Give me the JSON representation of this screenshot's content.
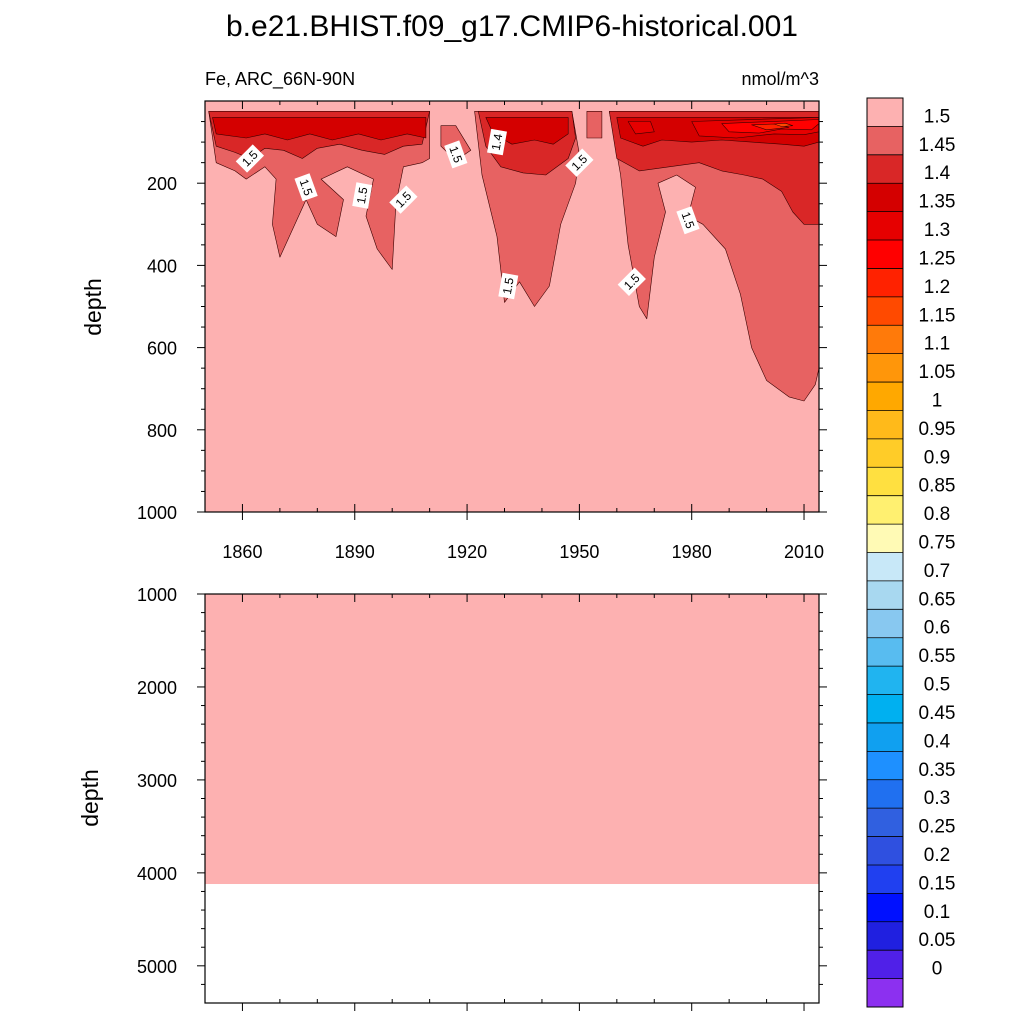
{
  "chart_data": [
    {
      "type": "contour",
      "title": "b.e21.BHIST.f09_g17.CMIP6-historical.001",
      "left_label": "Fe, ARC_66N-90N",
      "right_label": "nmol/m^3",
      "ylabel": "depth",
      "xlabel": "",
      "xlim": [
        1850,
        2014
      ],
      "ylim": [
        1000,
        0
      ],
      "x_ticks": [
        1860,
        1890,
        1920,
        1950,
        1980,
        2010
      ],
      "y_ticks": [
        200,
        400,
        600,
        800,
        1000
      ],
      "background_level": 1.5,
      "regions": [
        {
          "level": 1.45,
          "polygon": [
            [
              1851,
              25
            ],
            [
              1853,
              150
            ],
            [
              1858,
              170
            ],
            [
              1861,
              190
            ],
            [
              1866,
              160
            ],
            [
              1869,
              190
            ],
            [
              1868,
              300
            ],
            [
              1870,
              380
            ],
            [
              1874,
              300
            ],
            [
              1877,
              240
            ],
            [
              1880,
              300
            ],
            [
              1885,
              330
            ],
            [
              1887,
              240
            ],
            [
              1881,
              190
            ],
            [
              1888,
              160
            ],
            [
              1895,
              190
            ],
            [
              1893,
              280
            ],
            [
              1896,
              360
            ],
            [
              1900,
              410
            ],
            [
              1901,
              250
            ],
            [
              1903,
              160
            ],
            [
              1908,
              150
            ],
            [
              1910,
              140
            ],
            [
              1910,
              25
            ]
          ]
        },
        {
          "level": 1.45,
          "polygon": [
            [
              1913,
              60
            ],
            [
              1913,
              110
            ],
            [
              1917,
              145
            ],
            [
              1921,
              120
            ],
            [
              1917,
              60
            ]
          ]
        },
        {
          "level": 1.45,
          "polygon": [
            [
              1922,
              25
            ],
            [
              1924,
              180
            ],
            [
              1928,
              330
            ],
            [
              1930,
              490
            ],
            [
              1934,
              440
            ],
            [
              1938,
              500
            ],
            [
              1942,
              450
            ],
            [
              1945,
              300
            ],
            [
              1949,
              200
            ],
            [
              1950,
              130
            ],
            [
              1948,
              25
            ]
          ]
        },
        {
          "level": 1.45,
          "polygon": [
            [
              1952,
              25
            ],
            [
              1952,
              90
            ],
            [
              1956,
              90
            ],
            [
              1956,
              25
            ]
          ]
        },
        {
          "level": 1.45,
          "polygon": [
            [
              1958,
              25
            ],
            [
              1961,
              180
            ],
            [
              1963,
              350
            ],
            [
              1966,
              500
            ],
            [
              1968,
              530
            ],
            [
              1970,
              380
            ],
            [
              1973,
              270
            ],
            [
              1971,
              200
            ],
            [
              1976,
              180
            ],
            [
              1981,
              210
            ],
            [
              1979,
              280
            ],
            [
              1983,
              300
            ],
            [
              1989,
              360
            ],
            [
              1993,
              470
            ],
            [
              1996,
              600
            ],
            [
              2000,
              680
            ],
            [
              2006,
              720
            ],
            [
              2010,
              730
            ],
            [
              2013,
              690
            ],
            [
              2014,
              650
            ],
            [
              2014,
              25
            ]
          ]
        },
        {
          "level": 1.4,
          "polygon": [
            [
              1851,
              25
            ],
            [
              1853,
              110
            ],
            [
              1858,
              125
            ],
            [
              1862,
              140
            ],
            [
              1866,
              115
            ],
            [
              1871,
              120
            ],
            [
              1876,
              140
            ],
            [
              1880,
              115
            ],
            [
              1886,
              105
            ],
            [
              1892,
              120
            ],
            [
              1898,
              130
            ],
            [
              1903,
              110
            ],
            [
              1908,
              105
            ],
            [
              1910,
              25
            ]
          ]
        },
        {
          "level": 1.4,
          "polygon": [
            [
              1923,
              25
            ],
            [
              1925,
              110
            ],
            [
              1929,
              160
            ],
            [
              1935,
              175
            ],
            [
              1941,
              180
            ],
            [
              1947,
              140
            ],
            [
              1949,
              90
            ],
            [
              1948,
              25
            ]
          ]
        },
        {
          "level": 1.4,
          "polygon": [
            [
              1958,
              25
            ],
            [
              1960,
              140
            ],
            [
              1966,
              170
            ],
            [
              1974,
              160
            ],
            [
              1982,
              150
            ],
            [
              1988,
              170
            ],
            [
              1994,
              180
            ],
            [
              1999,
              190
            ],
            [
              2004,
              220
            ],
            [
              2007,
              270
            ],
            [
              2010,
              300
            ],
            [
              2014,
              300
            ],
            [
              2014,
              25
            ]
          ]
        },
        {
          "level": 1.35,
          "polygon": [
            [
              1852,
              40
            ],
            [
              1853,
              80
            ],
            [
              1861,
              90
            ],
            [
              1866,
              80
            ],
            [
              1872,
              95
            ],
            [
              1878,
              80
            ],
            [
              1884,
              95
            ],
            [
              1891,
              80
            ],
            [
              1897,
              95
            ],
            [
              1904,
              80
            ],
            [
              1909,
              90
            ],
            [
              1909,
              40
            ]
          ]
        },
        {
          "level": 1.35,
          "polygon": [
            [
              1925,
              40
            ],
            [
              1927,
              80
            ],
            [
              1932,
              105
            ],
            [
              1938,
              95
            ],
            [
              1943,
              105
            ],
            [
              1947,
              80
            ],
            [
              1947,
              40
            ]
          ]
        },
        {
          "level": 1.35,
          "polygon": [
            [
              1960,
              40
            ],
            [
              1961,
              90
            ],
            [
              1967,
              110
            ],
            [
              1972,
              95
            ],
            [
              1980,
              100
            ],
            [
              1988,
              95
            ],
            [
              1996,
              100
            ],
            [
              2004,
              105
            ],
            [
              2010,
              110
            ],
            [
              2014,
              100
            ],
            [
              2014,
              40
            ]
          ]
        },
        {
          "level": 1.3,
          "polygon": [
            [
              1963,
              50
            ],
            [
              1965,
              80
            ],
            [
              1970,
              75
            ],
            [
              1969,
              50
            ]
          ]
        },
        {
          "level": 1.3,
          "polygon": [
            [
              1980,
              50
            ],
            [
              1982,
              85
            ],
            [
              1992,
              90
            ],
            [
              2002,
              80
            ],
            [
              2010,
              82
            ],
            [
              2014,
              75
            ],
            [
              2014,
              40
            ]
          ]
        },
        {
          "level": 1.25,
          "polygon": [
            [
              1988,
              55
            ],
            [
              1990,
              75
            ],
            [
              1998,
              78
            ],
            [
              2004,
              68
            ],
            [
              2012,
              70
            ],
            [
              2014,
              55
            ],
            [
              2014,
              45
            ]
          ]
        },
        {
          "level": 1.2,
          "polygon": [
            [
              1996,
              58
            ],
            [
              2000,
              70
            ],
            [
              2006,
              64
            ],
            [
              2002,
              56
            ]
          ]
        },
        {
          "level": 1.15,
          "polygon": [
            [
              2002,
              56
            ],
            [
              2004,
              62
            ],
            [
              2007,
              60
            ],
            [
              2005,
              54
            ]
          ]
        }
      ],
      "contour_labels": [
        {
          "text": "1.5",
          "x": 1862,
          "y": 140
        },
        {
          "text": "1.5",
          "x": 1877,
          "y": 210
        },
        {
          "text": "1.5",
          "x": 1892,
          "y": 230
        },
        {
          "text": "1.5",
          "x": 1903,
          "y": 240
        },
        {
          "text": "1.5",
          "x": 1917,
          "y": 130
        },
        {
          "text": "1.4",
          "x": 1928,
          "y": 100
        },
        {
          "text": "1.5",
          "x": 1950,
          "y": 150
        },
        {
          "text": "1.5",
          "x": 1979,
          "y": 290
        },
        {
          "text": "1.5",
          "x": 1931,
          "y": 450
        },
        {
          "text": "1.5",
          "x": 1964,
          "y": 440
        }
      ]
    },
    {
      "type": "contour",
      "ylabel": "depth",
      "xlim": [
        1850,
        2014
      ],
      "ylim": [
        5400,
        1000
      ],
      "y_ticks": [
        1000,
        2000,
        3000,
        4000,
        5000
      ],
      "filled_level": 1.5,
      "filled_to_depth": 4120
    },
    {
      "type": "colorbar",
      "labels": [
        "1.5",
        "1.45",
        "1.4",
        "1.35",
        "1.3",
        "1.25",
        "1.2",
        "1.15",
        "1.1",
        "1.05",
        "1",
        "0.95",
        "0.9",
        "0.85",
        "0.8",
        "0.75",
        "0.7",
        "0.65",
        "0.6",
        "0.55",
        "0.5",
        "0.45",
        "0.4",
        "0.35",
        "0.3",
        "0.25",
        "0.2",
        "0.15",
        "0.1",
        "0.05",
        "0"
      ],
      "boundaries": [
        1.5,
        1.45,
        1.4,
        1.35,
        1.3,
        1.25,
        1.2,
        1.15,
        1.1,
        1.05,
        1,
        0.95,
        0.9,
        0.85,
        0.8,
        0.75,
        0.7,
        0.65,
        0.6,
        0.55,
        0.5,
        0.45,
        0.4,
        0.35,
        0.3,
        0.25,
        0.2,
        0.15,
        0.1,
        0.05,
        0
      ],
      "colors": [
        "#fdb1b1",
        "#e76262",
        "#d92727",
        "#d40000",
        "#e60000",
        "#ff0000",
        "#ff2200",
        "#ff4a00",
        "#ff7a0a",
        "#ff960a",
        "#ffa800",
        "#ffba1a",
        "#ffcc28",
        "#ffe040",
        "#fff070",
        "#fffab5",
        "#c8e8f8",
        "#a8d8f0",
        "#88c8f0",
        "#58bcf0",
        "#20b4f0",
        "#00b0f0",
        "#10a0f0",
        "#1e90ff",
        "#2070f0",
        "#3060e0",
        "#2f50e0",
        "#2040f0",
        "#0010ff",
        "#2020e0",
        "#5020e8",
        "#8c30f0"
      ]
    }
  ]
}
